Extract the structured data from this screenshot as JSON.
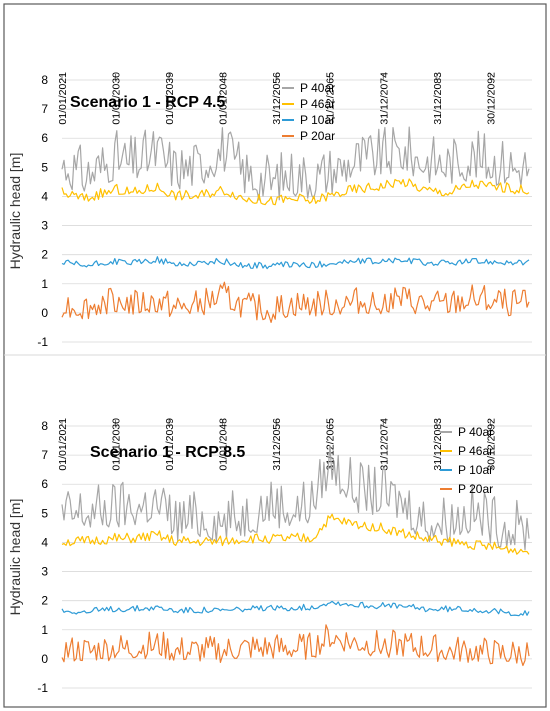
{
  "chart_data": [
    {
      "type": "line",
      "title": "Scenario 1 - RCP 4.5",
      "ylabel": "Hydraulic head [m]",
      "xlabel": "",
      "ylim": [
        -1,
        8
      ],
      "yticks": [
        "-1",
        "0",
        "1",
        "2",
        "3",
        "4",
        "5",
        "6",
        "7",
        "8"
      ],
      "x_tick_labels": [
        "01/01/2021",
        "01/01/2030",
        "01/01/2039",
        "01/01/2048",
        "31/12/2056",
        "31/12/2065",
        "31/12/2074",
        "31/12/2083",
        "30/12/2092"
      ],
      "x_range": [
        "01/01/2021",
        "31/12/2099"
      ],
      "grid": "horizontal",
      "legend": "top-center",
      "series": [
        {
          "name": "P 40ar",
          "color": "#a6a6a6",
          "x": [
            "2021",
            "2025",
            "2030",
            "2033",
            "2037",
            "2040",
            "2044",
            "2048",
            "2052",
            "2056",
            "2060",
            "2063",
            "2066",
            "2070",
            "2074",
            "2078",
            "2082",
            "2086",
            "2090",
            "2094",
            "2098"
          ],
          "values": [
            5.0,
            4.6,
            5.2,
            5.0,
            5.4,
            4.8,
            4.9,
            5.5,
            4.6,
            4.4,
            4.6,
            4.5,
            4.7,
            5.1,
            5.2,
            5.4,
            5.1,
            5.0,
            5.2,
            5.0,
            4.9
          ]
        },
        {
          "name": "P 46ar",
          "color": "#ffc000",
          "x": [
            "2021",
            "2025",
            "2030",
            "2033",
            "2037",
            "2040",
            "2044",
            "2048",
            "2052",
            "2056",
            "2060",
            "2063",
            "2066",
            "2070",
            "2074",
            "2078",
            "2082",
            "2086",
            "2090",
            "2094",
            "2098"
          ],
          "values": [
            4.1,
            3.9,
            4.2,
            4.1,
            4.3,
            4.0,
            4.0,
            4.2,
            3.9,
            3.8,
            3.9,
            3.8,
            4.0,
            4.2,
            4.3,
            4.5,
            4.2,
            4.1,
            4.4,
            4.3,
            4.2
          ]
        },
        {
          "name": "P 10ar",
          "color": "#2e9bd6",
          "x": [
            "2021",
            "2025",
            "2030",
            "2033",
            "2037",
            "2040",
            "2044",
            "2048",
            "2052",
            "2056",
            "2060",
            "2063",
            "2066",
            "2070",
            "2074",
            "2078",
            "2082",
            "2086",
            "2090",
            "2094",
            "2098"
          ],
          "values": [
            1.7,
            1.6,
            1.75,
            1.7,
            1.8,
            1.65,
            1.7,
            1.75,
            1.6,
            1.6,
            1.65,
            1.6,
            1.7,
            1.75,
            1.75,
            1.8,
            1.7,
            1.7,
            1.75,
            1.75,
            1.7
          ]
        },
        {
          "name": "P 20ar",
          "color": "#ed7d31",
          "x": [
            "2021",
            "2025",
            "2030",
            "2033",
            "2037",
            "2040",
            "2044",
            "2048",
            "2052",
            "2056",
            "2060",
            "2063",
            "2066",
            "2070",
            "2074",
            "2078",
            "2082",
            "2086",
            "2090",
            "2094",
            "2098"
          ],
          "values": [
            0.2,
            0.1,
            0.4,
            0.2,
            0.3,
            0.1,
            0.2,
            0.5,
            0.1,
            0.0,
            0.2,
            0.2,
            0.2,
            0.3,
            0.3,
            0.4,
            0.2,
            0.2,
            0.4,
            0.3,
            0.2
          ]
        }
      ]
    },
    {
      "type": "line",
      "title": "Scenario 1 - RCP 8.5",
      "ylabel": "Hydraulic head [m]",
      "xlabel": "",
      "ylim": [
        -1,
        8
      ],
      "yticks": [
        "-1",
        "0",
        "1",
        "2",
        "3",
        "4",
        "5",
        "6",
        "7",
        "8"
      ],
      "x_tick_labels": [
        "01/01/2021",
        "01/01/2030",
        "01/01/2039",
        "01/01/2048",
        "31/12/2056",
        "31/12/2065",
        "31/12/2074",
        "31/12/2083",
        "30/12/2092"
      ],
      "x_range": [
        "01/01/2021",
        "31/12/2099"
      ],
      "grid": "horizontal",
      "legend": "top-right",
      "series": [
        {
          "name": "P 40ar",
          "color": "#a6a6a6",
          "x": [
            "2021",
            "2025",
            "2030",
            "2033",
            "2037",
            "2040",
            "2044",
            "2048",
            "2052",
            "2056",
            "2060",
            "2063",
            "2066",
            "2070",
            "2074",
            "2078",
            "2082",
            "2086",
            "2090",
            "2094",
            "2098"
          ],
          "values": [
            4.8,
            4.9,
            5.0,
            5.1,
            5.2,
            4.6,
            4.7,
            4.6,
            4.8,
            5.2,
            5.0,
            5.2,
            6.6,
            5.7,
            5.5,
            5.3,
            4.6,
            4.6,
            4.9,
            4.5,
            4.3
          ]
        },
        {
          "name": "P 46ar",
          "color": "#ffc000",
          "x": [
            "2021",
            "2025",
            "2030",
            "2033",
            "2037",
            "2040",
            "2044",
            "2048",
            "2052",
            "2056",
            "2060",
            "2063",
            "2066",
            "2070",
            "2074",
            "2078",
            "2082",
            "2086",
            "2090",
            "2094",
            "2098"
          ],
          "values": [
            4.0,
            4.0,
            4.1,
            4.1,
            4.2,
            4.0,
            4.0,
            4.0,
            4.1,
            4.1,
            4.1,
            4.1,
            4.8,
            4.6,
            4.5,
            4.3,
            4.1,
            4.0,
            3.9,
            3.8,
            3.7
          ]
        },
        {
          "name": "P 10ar",
          "color": "#2e9bd6",
          "x": [
            "2021",
            "2025",
            "2030",
            "2033",
            "2037",
            "2040",
            "2044",
            "2048",
            "2052",
            "2056",
            "2060",
            "2063",
            "2066",
            "2070",
            "2074",
            "2078",
            "2082",
            "2086",
            "2090",
            "2094",
            "2098"
          ],
          "values": [
            1.65,
            1.6,
            1.7,
            1.7,
            1.75,
            1.65,
            1.65,
            1.65,
            1.7,
            1.7,
            1.75,
            1.75,
            1.95,
            1.85,
            1.8,
            1.8,
            1.7,
            1.7,
            1.7,
            1.6,
            1.55
          ]
        },
        {
          "name": "P 20ar",
          "color": "#ed7d31",
          "x": [
            "2021",
            "2025",
            "2030",
            "2033",
            "2037",
            "2040",
            "2044",
            "2048",
            "2052",
            "2056",
            "2060",
            "2063",
            "2066",
            "2070",
            "2074",
            "2078",
            "2082",
            "2086",
            "2090",
            "2094",
            "2098"
          ],
          "values": [
            0.2,
            0.2,
            0.3,
            0.3,
            0.4,
            0.2,
            0.2,
            0.2,
            0.3,
            0.3,
            0.3,
            0.3,
            0.7,
            0.5,
            0.4,
            0.4,
            0.3,
            0.2,
            0.2,
            0.1,
            0.1
          ]
        }
      ]
    }
  ]
}
